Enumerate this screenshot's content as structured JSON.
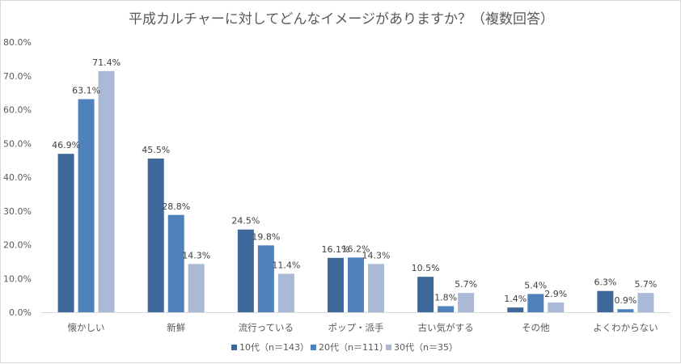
{
  "chart_data": {
    "type": "bar",
    "title": "平成カルチャーに対してどんなイメージがありますか？（複数回答）",
    "xlabel": "",
    "ylabel": "",
    "ylim": [
      0,
      80
    ],
    "yticks": [
      0,
      10,
      20,
      30,
      40,
      50,
      60,
      70,
      80
    ],
    "ytick_labels": [
      "0.0%",
      "10.0%",
      "20.0%",
      "30.0%",
      "40.0%",
      "50.0%",
      "60.0%",
      "70.0%",
      "80.0%"
    ],
    "grid": false,
    "legend_position": "bottom",
    "categories": [
      "懐かしい",
      "新鮮",
      "流行っている",
      "ポップ・派手",
      "古い気がする",
      "その他",
      "よくわからない"
    ],
    "series": [
      {
        "name": "10代（n＝143）",
        "color": "#3e6899",
        "values": [
          46.9,
          45.5,
          24.5,
          16.1,
          10.5,
          1.4,
          6.3
        ],
        "labels": [
          "46.9%",
          "45.5%",
          "24.5%",
          "16.1%",
          "10.5%",
          "1.4%",
          "6.3%"
        ]
      },
      {
        "name": "20代（n＝111）",
        "color": "#4f81bd",
        "values": [
          63.1,
          28.8,
          19.8,
          16.2,
          1.8,
          5.4,
          0.9
        ],
        "labels": [
          "63.1%",
          "28.8%",
          "19.8%",
          "16.2%",
          "1.8%",
          "5.4%",
          "0.9%"
        ]
      },
      {
        "name": "30代（n＝35）",
        "color": "#a9b9d6",
        "values": [
          71.4,
          14.3,
          11.4,
          14.3,
          5.7,
          2.9,
          5.7
        ],
        "labels": [
          "71.4%",
          "14.3%",
          "11.4%",
          "14.3%",
          "5.7%",
          "2.9%",
          "5.7%"
        ]
      }
    ]
  }
}
